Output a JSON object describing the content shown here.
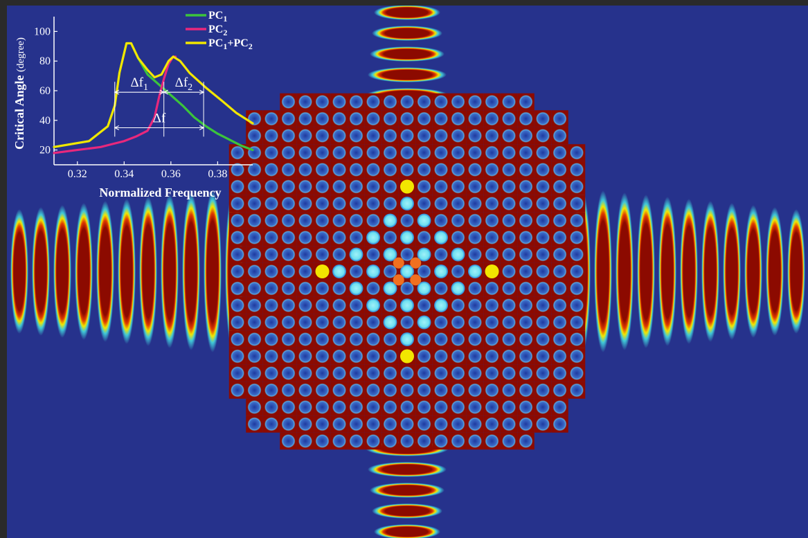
{
  "chart_data": {
    "type": "line",
    "xlabel": "Normalized Frequency",
    "ylabel": "Critical Angle",
    "ylabel_unit": "(degree)",
    "xlim": [
      0.31,
      0.395
    ],
    "ylim": [
      10,
      110
    ],
    "xticks": [
      "0.32",
      "0.34",
      "0.36",
      "0.38"
    ],
    "xtick_values": [
      0.32,
      0.34,
      0.36,
      0.38
    ],
    "yticks": [
      "20",
      "40",
      "60",
      "80",
      "100"
    ],
    "ytick_values": [
      20,
      40,
      60,
      80,
      100
    ],
    "legend_position": "top-right",
    "series": [
      {
        "name": "PC1",
        "name_main": "PC",
        "name_sub": "1",
        "color": "#3cc43c",
        "points": [
          [
            0.31,
            22
          ],
          [
            0.325,
            26
          ],
          [
            0.333,
            36
          ],
          [
            0.336,
            50
          ],
          [
            0.338,
            72
          ],
          [
            0.341,
            92
          ],
          [
            0.343,
            92
          ],
          [
            0.346,
            82
          ],
          [
            0.35,
            71
          ],
          [
            0.355,
            64
          ],
          [
            0.36,
            57
          ],
          [
            0.365,
            50
          ],
          [
            0.37,
            42
          ],
          [
            0.375,
            36
          ],
          [
            0.38,
            31
          ],
          [
            0.385,
            27
          ],
          [
            0.39,
            23
          ],
          [
            0.395,
            20
          ]
        ]
      },
      {
        "name": "PC2",
        "name_main": "PC",
        "name_sub": "2",
        "color": "#e8287c",
        "points": [
          [
            0.31,
            18
          ],
          [
            0.32,
            20
          ],
          [
            0.325,
            21
          ],
          [
            0.33,
            22
          ],
          [
            0.335,
            24
          ],
          [
            0.34,
            26
          ],
          [
            0.345,
            29
          ],
          [
            0.35,
            33
          ],
          [
            0.353,
            42
          ],
          [
            0.355,
            56
          ],
          [
            0.357,
            68
          ],
          [
            0.359,
            78
          ],
          [
            0.361,
            83
          ],
          [
            0.362,
            83
          ]
        ]
      },
      {
        "name": "PC1+PC2",
        "name_main": "PC",
        "name_sub": "1",
        "name_main2": "+PC",
        "name_sub2": "2",
        "color": "#f2e600",
        "points": [
          [
            0.31,
            22
          ],
          [
            0.325,
            26
          ],
          [
            0.333,
            36
          ],
          [
            0.336,
            50
          ],
          [
            0.338,
            72
          ],
          [
            0.341,
            92
          ],
          [
            0.343,
            92
          ],
          [
            0.346,
            82
          ],
          [
            0.35,
            74
          ],
          [
            0.353,
            69
          ],
          [
            0.356,
            71
          ],
          [
            0.359,
            80
          ],
          [
            0.361,
            83
          ],
          [
            0.364,
            80
          ],
          [
            0.368,
            72
          ],
          [
            0.375,
            62
          ],
          [
            0.382,
            53
          ],
          [
            0.388,
            45
          ],
          [
            0.395,
            38
          ]
        ]
      }
    ],
    "annotations": [
      {
        "label": "Δf",
        "sub": "1",
        "from": 0.336,
        "to": 0.357,
        "y": 59
      },
      {
        "label": "Δf",
        "sub": "2",
        "from": 0.357,
        "to": 0.374,
        "y": 59
      },
      {
        "label": "Δf",
        "sub": "",
        "from": 0.336,
        "to": 0.374,
        "y": 35
      }
    ]
  },
  "background_colors": {
    "field": "#26328c",
    "wave": "#8c0a00",
    "rod_inner": "#3c6cc8",
    "rod_center": "#6ce0f0",
    "hot": "#f2e600"
  }
}
